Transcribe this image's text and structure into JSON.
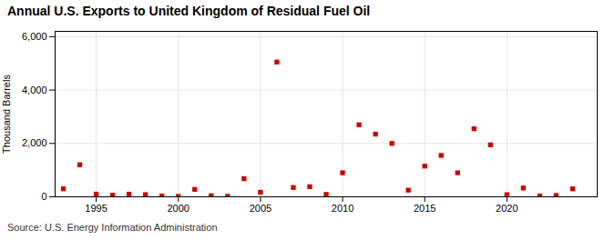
{
  "chart_data": {
    "type": "scatter",
    "title": "Annual U.S. Exports to United Kingdom of Residual Fuel Oil",
    "ylabel": "Thousand Barrels",
    "caption": "Source: U.S. Energy Information Administration",
    "x": [
      1993,
      1994,
      1995,
      1996,
      1997,
      1998,
      1999,
      2000,
      2001,
      2002,
      2003,
      2004,
      2005,
      2006,
      2007,
      2008,
      2009,
      2010,
      2011,
      2012,
      2013,
      2014,
      2015,
      2016,
      2017,
      2018,
      2019,
      2020,
      2021,
      2022,
      2023,
      2024
    ],
    "values": [
      300,
      1200,
      100,
      60,
      100,
      80,
      30,
      15,
      280,
      40,
      20,
      680,
      170,
      5050,
      350,
      380,
      90,
      900,
      2700,
      2350,
      2000,
      250,
      1150,
      1550,
      900,
      2550,
      1950,
      80,
      330,
      30,
      50,
      300
    ],
    "color": "#cc0000",
    "marker": "square",
    "xlim": [
      1992.5,
      2025.5
    ],
    "xticks": [
      1995,
      2000,
      2005,
      2010,
      2015,
      2020
    ],
    "ylim": [
      0,
      6200
    ],
    "yticks": [
      0,
      {
        "value": 2000,
        "label": "2,000"
      },
      {
        "value": 4000,
        "label": "4,000"
      },
      {
        "value": 6000,
        "label": "6,000"
      }
    ],
    "grid": true
  }
}
